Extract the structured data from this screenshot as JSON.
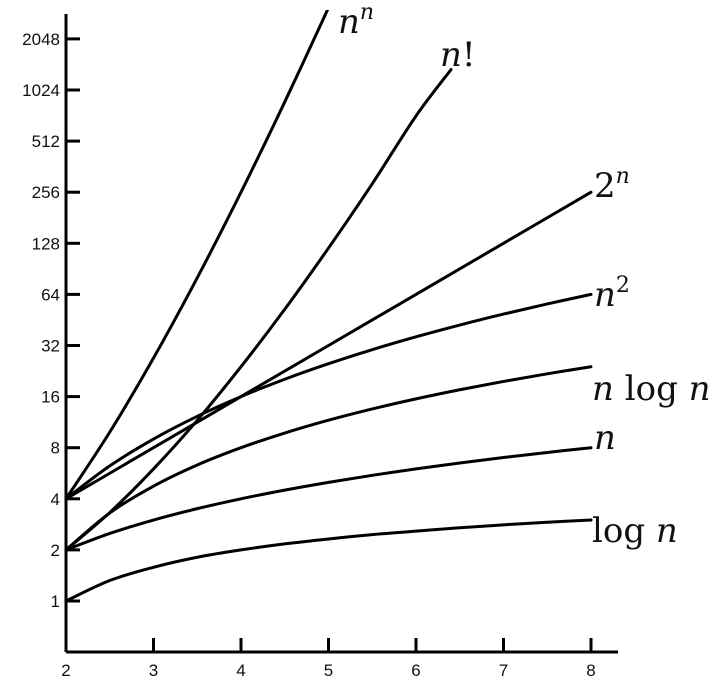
{
  "chart_data": {
    "type": "line",
    "title": "",
    "xlabel": "",
    "ylabel": "",
    "y_scale": "log2",
    "xlim": [
      2,
      8.3
    ],
    "ylim": [
      0.5,
      3200
    ],
    "x_ticks": [
      2,
      3,
      4,
      5,
      6,
      7,
      8
    ],
    "x_tick_labels": [
      "2",
      "3",
      "4",
      "5",
      "6",
      "7",
      "8"
    ],
    "y_ticks": [
      1,
      2,
      4,
      8,
      16,
      32,
      64,
      128,
      256,
      512,
      1024,
      2048
    ],
    "y_tick_labels": [
      "1",
      "2",
      "4",
      "8",
      "16",
      "32",
      "64",
      "128",
      "256",
      "512",
      "1024",
      "2048"
    ],
    "grid": false,
    "legend": "none",
    "series": [
      {
        "name": "n^n",
        "color": "#000000",
        "x": [
          2,
          2.5,
          3,
          3.5,
          4,
          4.5,
          5,
          5.2
        ],
        "y": [
          4,
          9.88,
          27,
          80.2,
          256,
          871,
          3125,
          5300
        ]
      },
      {
        "name": "n!",
        "color": "#000000",
        "x": [
          2,
          2.5,
          3,
          3.5,
          4,
          4.5,
          5,
          5.5,
          6,
          6.4
        ],
        "y": [
          2,
          3.32,
          6,
          11.6,
          24,
          52.3,
          120,
          287,
          720,
          1350
        ]
      },
      {
        "name": "2^n",
        "color": "#000000",
        "x": [
          2,
          3,
          4,
          5,
          6,
          7,
          8
        ],
        "y": [
          4,
          8,
          16,
          32,
          64,
          128,
          256
        ]
      },
      {
        "name": "n^2",
        "color": "#000000",
        "x": [
          2,
          2.5,
          3,
          3.5,
          4,
          4.5,
          5,
          5.5,
          6,
          6.5,
          7,
          7.5,
          8
        ],
        "y": [
          4,
          6.25,
          9,
          12.25,
          16,
          20.25,
          25,
          30.25,
          36,
          42.25,
          49,
          56.25,
          64
        ]
      },
      {
        "name": "n log n",
        "color": "#000000",
        "x": [
          2,
          2.5,
          3,
          3.5,
          4,
          4.5,
          5,
          5.5,
          6,
          6.5,
          7,
          7.5,
          8
        ],
        "y": [
          2,
          3.3,
          4.75,
          6.33,
          8,
          9.76,
          11.61,
          13.53,
          15.51,
          17.55,
          19.65,
          21.8,
          24
        ]
      },
      {
        "name": "n",
        "color": "#000000",
        "x": [
          2,
          2.5,
          3,
          3.5,
          4,
          4.5,
          5,
          5.5,
          6,
          6.5,
          7,
          7.5,
          8
        ],
        "y": [
          2,
          2.5,
          3,
          3.5,
          4,
          4.5,
          5,
          5.5,
          6,
          6.5,
          7,
          7.5,
          8
        ]
      },
      {
        "name": "log n",
        "color": "#000000",
        "x": [
          2,
          2.5,
          3,
          3.5,
          4,
          4.5,
          5,
          5.5,
          6,
          6.5,
          7,
          7.5,
          8
        ],
        "y": [
          1,
          1.32,
          1.58,
          1.81,
          2,
          2.17,
          2.32,
          2.46,
          2.58,
          2.7,
          2.81,
          2.91,
          3
        ]
      }
    ]
  }
}
